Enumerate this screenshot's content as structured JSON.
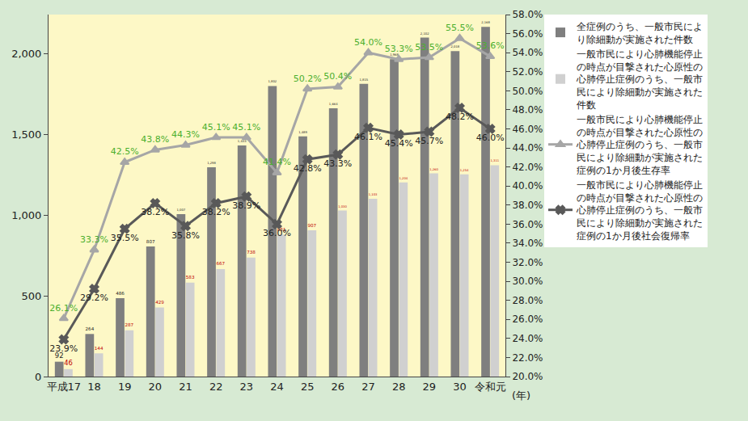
{
  "chart_data": {
    "type": "bar",
    "xlabel": "(年)",
    "categories": [
      "平成17",
      "18",
      "19",
      "20",
      "21",
      "22",
      "23",
      "24",
      "25",
      "26",
      "27",
      "28",
      "29",
      "30",
      "令和元"
    ],
    "ylim": [
      0,
      2245
    ],
    "yticks": [
      0,
      500,
      {
        "value": 1000,
        "label": "1,000"
      },
      {
        "value": 1500,
        "label": "1,500"
      },
      {
        "value": 2000,
        "label": "2,000"
      }
    ],
    "y2lim": [
      20,
      58
    ],
    "y2ticks": [
      {
        "value": 20,
        "label": "20.0%"
      },
      {
        "value": 22,
        "label": "22.0%"
      },
      {
        "value": 24,
        "label": "24.0%"
      },
      {
        "value": 26,
        "label": "26.0%"
      },
      {
        "value": 28,
        "label": "28.0%"
      },
      {
        "value": 30,
        "label": "30.0%"
      },
      {
        "value": 32,
        "label": "32.0%"
      },
      {
        "value": 34,
        "label": "34.0%"
      },
      {
        "value": 36,
        "label": "36.0%"
      },
      {
        "value": 38,
        "label": "38.0%"
      },
      {
        "value": 40,
        "label": "40.0%"
      },
      {
        "value": 42,
        "label": "42.0%"
      },
      {
        "value": 44,
        "label": "44.0%"
      },
      {
        "value": 46,
        "label": "46.0%"
      },
      {
        "value": 48,
        "label": "48.0%"
      },
      {
        "value": 50,
        "label": "50.0%"
      },
      {
        "value": 52,
        "label": "52.0%"
      },
      {
        "value": 54,
        "label": "54.0%"
      },
      {
        "value": 56,
        "label": "56.0%"
      },
      {
        "value": 58,
        "label": "58.0%"
      }
    ],
    "grid": false,
    "legend": "right",
    "data_labels": true,
    "series": [
      {
        "name": "全症例のうち、一般市民により除細動が実施された件数",
        "type": "bar",
        "color": "#7f7f7f",
        "values": [
          92,
          264,
          486,
          807,
          1007,
          1298,
          1433,
          1802,
          1489,
          1664,
          1815,
          1968,
          2102,
          2018,
          2168
        ],
        "value_labels": [
          "92",
          "264",
          "486",
          "807",
          "1,007",
          "1,298",
          "1,433",
          "1,802",
          "1,489",
          "1,664",
          "1,815",
          "1,968",
          "2,102",
          "2,018",
          "2,168"
        ]
      },
      {
        "name": "一般市民により心肺機能停止の時点が目撃された心原性の心肺停止症例のうち、一般市民により除細動が実施された件数",
        "type": "bar",
        "color": "#d0d0d0",
        "values": [
          46,
          144,
          287,
          429,
          583,
          667,
          738,
          881,
          907,
          1030,
          1103,
          1204,
          1260,
          1254,
          1311
        ],
        "value_labels": [
          "46",
          "144",
          "287",
          "429",
          "583",
          "667",
          "738",
          "881",
          "907",
          "1,030",
          "1,103",
          "1,204",
          "1,260",
          "1,254",
          "1,311"
        ]
      },
      {
        "name": "一般市民により心肺機能停止の時点が目撃された心原性の心肺停止症例のうち、一般市民により除細動が実施された症例の1か月後生存率",
        "type": "line",
        "axis": "y2",
        "color": "#a6a6a6",
        "marker": "triangle-up",
        "values": [
          26.1,
          33.3,
          42.5,
          43.8,
          44.3,
          45.1,
          45.1,
          41.4,
          50.2,
          50.4,
          54.0,
          53.3,
          53.5,
          55.5,
          53.6
        ],
        "value_labels": [
          "26.1%",
          "33.3%",
          "42.5%",
          "43.8%",
          "44.3%",
          "45.1%",
          "45.1%",
          "41.4%",
          "50.2%",
          "50.4%",
          "54.0%",
          "53.3%",
          "53.5%",
          "55.5%",
          "53.6%"
        ]
      },
      {
        "name": "一般市民により心肺機能停止の時点が目撃された心原性の心肺停止症例のうち、一般市民により除細動が実施された症例の1か月後社会復帰率",
        "type": "line",
        "axis": "y2",
        "color": "#595959",
        "marker": "x",
        "values": [
          23.9,
          29.2,
          35.5,
          38.2,
          35.8,
          38.2,
          38.9,
          36.0,
          42.8,
          43.3,
          46.1,
          45.4,
          45.7,
          48.2,
          46.0
        ],
        "value_labels": [
          "23.9%",
          "29.2%",
          "35.5%",
          "38.2%",
          "35.8%",
          "38.2%",
          "38.9%",
          "36.0%",
          "42.8%",
          "43.3%",
          "46.1%",
          "45.4%",
          "45.7%",
          "48.2%",
          "46.0%"
        ]
      }
    ]
  }
}
